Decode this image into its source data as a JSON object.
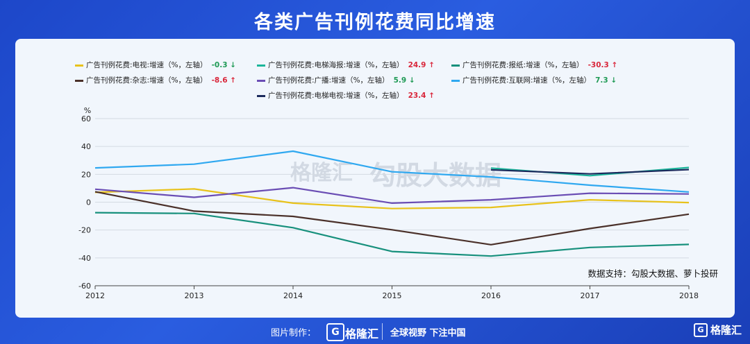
{
  "title": "各类广告刊例花费同比增速",
  "footer": {
    "credit": "图片制作：",
    "brand": "格隆汇",
    "slogan": "全球视野 下注中国",
    "corner_brand": "格隆汇"
  },
  "source": "数据支持：勾股大数据、萝卜投研",
  "watermarks": [
    "格隆汇",
    "勾股大数据"
  ],
  "legend": [
    {
      "label": "广告刊例花费:电视:增速（%，左轴）",
      "value": "-0.3",
      "arrow": "↓",
      "dir": "down",
      "color": "#e8c21b"
    },
    {
      "label": "广告刊例花费:电梯海报:增速（%，左轴）",
      "value": "24.9",
      "arrow": "↑",
      "dir": "up",
      "color": "#1bb59a"
    },
    {
      "label": "广告刊例花费:报纸:增速（%，左轴）",
      "value": "-30.3",
      "arrow": "↑",
      "dir": "up",
      "color": "#17907c"
    },
    {
      "label": "广告刊例花费:杂志:增速（%，左轴）",
      "value": "-8.6",
      "arrow": "↑",
      "dir": "up",
      "color": "#4a3029"
    },
    {
      "label": "广告刊例花费:广播:增速（%，左轴）",
      "value": "5.9",
      "arrow": "↓",
      "dir": "down",
      "color": "#6a4db4"
    },
    {
      "label": "广告刊例花费:互联网:增速（%，左轴）",
      "value": "7.3",
      "arrow": "↓",
      "dir": "down",
      "color": "#2fa8f0"
    },
    {
      "label": "广告刊例花费:电梯电视:增速（%，左轴）",
      "value": "23.4",
      "arrow": "↑",
      "dir": "up",
      "color": "#1b2a5c"
    }
  ],
  "chart_data": {
    "type": "line",
    "ylabel": "%",
    "ylim": [
      -60,
      60
    ],
    "yticks": [
      60,
      40,
      20,
      0,
      -20,
      -40,
      -60
    ],
    "categories": [
      "2012",
      "2013",
      "2014",
      "2015",
      "2016",
      "2017",
      "2018"
    ],
    "grid": true,
    "series": [
      {
        "name": "广告刊例花费:电视:增速（%，左轴）",
        "color": "#e8c21b",
        "values": [
          7,
          9.5,
          -0.7,
          -4.6,
          -3.8,
          1.7,
          -0.3
        ]
      },
      {
        "name": "广告刊例花费:电梯海报:增速（%，左轴）",
        "color": "#1bb59a",
        "values": [
          null,
          null,
          null,
          null,
          24.5,
          19,
          24.9
        ]
      },
      {
        "name": "广告刊例花费:报纸:增速（%，左轴）",
        "color": "#17907c",
        "values": [
          -7.5,
          -8.1,
          -18.3,
          -35.4,
          -38.7,
          -32.5,
          -30.3
        ]
      },
      {
        "name": "广告刊例花费:杂志:增速（%，左轴）",
        "color": "#4a3029",
        "values": [
          7.5,
          -6.4,
          -10.2,
          -19.8,
          -30.5,
          -18.9,
          -8.6
        ]
      },
      {
        "name": "广告刊例花费:广播:增速（%，左轴）",
        "color": "#6a4db4",
        "values": [
          9.3,
          3.5,
          10.4,
          -0.7,
          1.7,
          6.4,
          5.9
        ]
      },
      {
        "name": "广告刊例花费:互联网:增速（%，左轴）",
        "color": "#2fa8f0",
        "values": [
          24.6,
          27.3,
          36.6,
          21.8,
          18.1,
          12.2,
          7.3
        ]
      },
      {
        "name": "广告刊例花费:电梯电视:增速（%，左轴）",
        "color": "#1b2a5c",
        "values": [
          null,
          null,
          null,
          null,
          23.2,
          20.3,
          23.4
        ]
      }
    ]
  }
}
